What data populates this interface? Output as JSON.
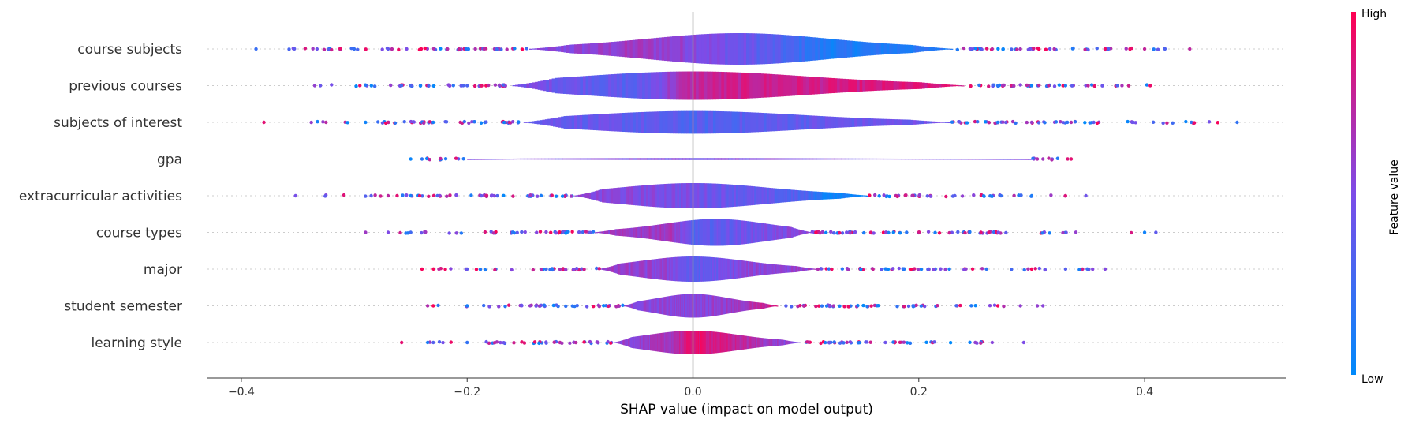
{
  "chart_data": {
    "type": "violin-summary",
    "title": "",
    "xlabel": "SHAP value (impact on model output)",
    "xlim": [
      -0.43,
      0.525
    ],
    "xticks": [
      -0.4,
      -0.2,
      0.0,
      0.2,
      0.4
    ],
    "xtick_labels": [
      "−0.4",
      "−0.2",
      "0.0",
      "0.2",
      "0.4"
    ],
    "colorbar": {
      "label": "Feature value",
      "high": "High",
      "low": "Low",
      "colors": [
        "#008afb",
        "#7d4ce8",
        "#ff0052"
      ]
    },
    "features": [
      {
        "name": "course subjects",
        "min": -0.39,
        "max": 0.44,
        "core": [
          -0.145,
          0.23
        ],
        "peak": 0.04,
        "width": 1.0,
        "color_stops": [
          [
            -0.145,
            0.5
          ],
          [
            -0.05,
            0.62
          ],
          [
            0.0,
            0.55
          ],
          [
            0.07,
            0.35
          ],
          [
            0.12,
            0.12
          ],
          [
            0.23,
            0.15
          ]
        ],
        "outliers": [
          -0.387,
          -0.333,
          -0.3,
          -0.27,
          -0.185,
          -0.12,
          0.265,
          0.29,
          0.32,
          0.365,
          0.4,
          0.418,
          0.44
        ]
      },
      {
        "name": "previous courses",
        "min": -0.335,
        "max": 0.405,
        "core": [
          -0.16,
          0.24
        ],
        "peak": 0.0,
        "width": 0.9,
        "color_stops": [
          [
            -0.16,
            0.5
          ],
          [
            -0.1,
            0.42
          ],
          [
            -0.05,
            0.35
          ],
          [
            0.0,
            0.75
          ],
          [
            0.05,
            0.8
          ],
          [
            0.24,
            0.85
          ]
        ],
        "outliers": [
          -0.335,
          -0.33,
          -0.295,
          -0.25,
          -0.2,
          0.27,
          0.3,
          0.315,
          0.33,
          0.35,
          0.38,
          0.405
        ]
      },
      {
        "name": "subjects of interest",
        "min": -0.38,
        "max": 0.482,
        "core": [
          -0.15,
          0.228
        ],
        "peak": 0.0,
        "width": 0.72,
        "color_stops": [
          [
            -0.15,
            0.45
          ],
          [
            -0.05,
            0.38
          ],
          [
            0.0,
            0.32
          ],
          [
            0.1,
            0.4
          ],
          [
            0.228,
            0.45
          ]
        ],
        "outliers": [
          -0.38,
          -0.325,
          -0.29,
          -0.27,
          -0.23,
          0.27,
          0.3,
          0.335,
          0.355,
          0.39,
          0.482
        ]
      },
      {
        "name": "gpa",
        "min": -0.25,
        "max": 0.335,
        "core": [
          -0.2,
          0.3
        ],
        "peak": 0.0,
        "width": 0.06,
        "color_stops": [
          [
            -0.2,
            0.5
          ],
          [
            0.3,
            0.5
          ]
        ],
        "outliers": [
          -0.25,
          -0.24,
          0.305,
          0.31,
          0.335
        ]
      },
      {
        "name": "extracurricular activities",
        "min": -0.352,
        "max": 0.348,
        "core": [
          -0.105,
          0.155
        ],
        "peak": 0.0,
        "width": 0.8,
        "color_stops": [
          [
            -0.105,
            0.55
          ],
          [
            -0.02,
            0.5
          ],
          [
            0.05,
            0.4
          ],
          [
            0.1,
            0.3
          ],
          [
            0.12,
            0.05
          ],
          [
            0.155,
            0.05
          ]
        ],
        "outliers": [
          -0.352,
          -0.285,
          -0.27,
          -0.25,
          0.3,
          0.33,
          0.348
        ]
      },
      {
        "name": "course types",
        "min": -0.29,
        "max": 0.41,
        "core": [
          -0.087,
          0.105
        ],
        "peak": 0.02,
        "width": 0.85,
        "color_stops": [
          [
            -0.087,
            0.6
          ],
          [
            -0.02,
            0.65
          ],
          [
            0.0,
            0.35
          ],
          [
            0.05,
            0.45
          ],
          [
            0.105,
            0.55
          ]
        ],
        "outliers": [
          -0.29,
          -0.27,
          -0.25,
          0.255,
          0.262,
          0.4,
          0.41
        ]
      },
      {
        "name": "major",
        "min": -0.24,
        "max": 0.365,
        "core": [
          -0.083,
          0.11
        ],
        "peak": 0.0,
        "width": 0.8,
        "color_stops": [
          [
            -0.083,
            0.6
          ],
          [
            -0.02,
            0.55
          ],
          [
            0.0,
            0.35
          ],
          [
            0.05,
            0.55
          ],
          [
            0.11,
            0.6
          ]
        ],
        "outliers": [
          -0.24,
          -0.225,
          -0.2,
          0.3,
          0.33,
          0.345,
          0.365
        ]
      },
      {
        "name": "student semester",
        "min": -0.235,
        "max": 0.31,
        "core": [
          -0.062,
          0.075
        ],
        "peak": 0.0,
        "width": 0.75,
        "color_stops": [
          [
            -0.062,
            0.55
          ],
          [
            0.0,
            0.55
          ],
          [
            0.04,
            0.6
          ],
          [
            0.075,
            0.85
          ]
        ],
        "outliers": [
          -0.235,
          -0.23,
          -0.2,
          0.27,
          0.29,
          0.305,
          0.31
        ]
      },
      {
        "name": "learning style",
        "min": -0.258,
        "max": 0.293,
        "core": [
          -0.07,
          0.095
        ],
        "peak": 0.0,
        "width": 0.75,
        "color_stops": [
          [
            -0.07,
            0.55
          ],
          [
            -0.02,
            0.65
          ],
          [
            0.0,
            0.9
          ],
          [
            0.03,
            0.8
          ],
          [
            0.095,
            0.5
          ]
        ],
        "outliers": [
          -0.258,
          -0.235,
          -0.23,
          -0.2,
          0.25,
          0.265,
          0.293
        ]
      }
    ]
  }
}
